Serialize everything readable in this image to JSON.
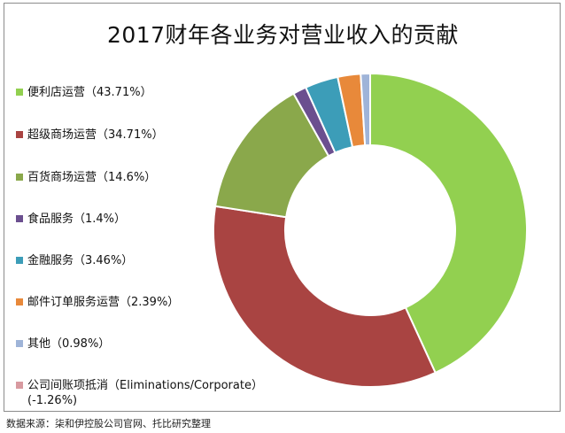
{
  "chart_data": {
    "type": "pie",
    "donut": true,
    "title": "2017财年各业务对营业收入的贡献",
    "legend_position": "left",
    "series": [
      {
        "name": "便利店运营",
        "value": 43.71,
        "label": "便利店运营（43.71%）",
        "color": "#92d050"
      },
      {
        "name": "超级商场运营",
        "value": 34.71,
        "label": "超级商场运营（34.71%）",
        "color": "#a94442"
      },
      {
        "name": "百货商场运营",
        "value": 14.6,
        "label": "百货商场运营（14.6%）",
        "color": "#8aa84b"
      },
      {
        "name": "食品服务",
        "value": 1.4,
        "label": "食品服务（1.4%）",
        "color": "#6b4f8f"
      },
      {
        "name": "金融服务",
        "value": 3.46,
        "label": "金融服务（3.46%）",
        "color": "#3c9db8"
      },
      {
        "name": "邮件订单服务运营",
        "value": 2.39,
        "label": "邮件订单服务运营（2.39%）",
        "color": "#e8893a"
      },
      {
        "name": "其他",
        "value": 0.98,
        "label": "其他（0.98%）",
        "color": "#9fb4d8"
      },
      {
        "name": "公司间账项抵消",
        "value": -1.26,
        "label": "公司间账项抵消（Eliminations/Corporate）(-1.26%)",
        "color": "#d89aa0"
      }
    ]
  },
  "source": "数据来源：柒和伊控股公司官网、托比研究整理"
}
